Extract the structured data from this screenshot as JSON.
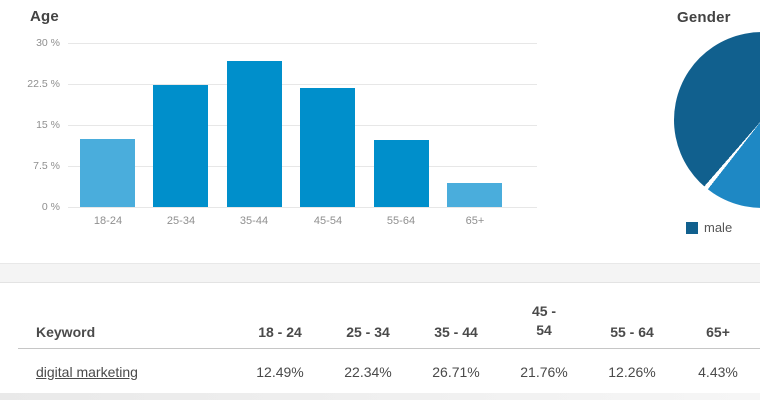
{
  "chart_data": [
    {
      "type": "bar",
      "title": "Age",
      "categories": [
        "18-24",
        "25-34",
        "35-44",
        "45-54",
        "55-64",
        "65+"
      ],
      "values": [
        12.49,
        22.34,
        26.71,
        21.76,
        12.26,
        4.43
      ],
      "value_unit": "%",
      "y_ticks": [
        "30 %",
        "22.5 %",
        "15 %",
        "7.5 %",
        "0 %"
      ],
      "y_tick_values": [
        30,
        22.5,
        15,
        7.5,
        0
      ],
      "ylim": [
        0,
        30
      ],
      "grid": true,
      "legend": null,
      "bar_colors": [
        "#4aaddc",
        "#008fcb",
        "#008fcb",
        "#008fcb",
        "#008fcb",
        "#4aaddc"
      ]
    },
    {
      "type": "pie",
      "title": "Gender",
      "legend_position": "bottom",
      "legend": [
        {
          "label": "male",
          "color": "#11608e"
        }
      ],
      "slices": [
        {
          "name": "male",
          "color": "#11608e",
          "visible_arc_deg": 139
        },
        {
          "name": "unlabeled-light-slice",
          "color": "#1e88c4",
          "visible_arc_deg": 38
        }
      ]
    }
  ],
  "table": {
    "columns": [
      "Keyword",
      "18 - 24",
      "25 - 34",
      "35 - 44",
      "45 - 54",
      "55 - 64",
      "65+"
    ],
    "rows": [
      {
        "keyword": "digital marketing",
        "values": [
          "12.49%",
          "22.34%",
          "26.71%",
          "21.76%",
          "12.26%",
          "4.43%"
        ]
      }
    ]
  },
  "colors": {
    "bar_light": "#4aaddc",
    "bar_dark": "#008fcb",
    "pie_dark": "#11608e",
    "pie_light": "#1e88c4",
    "grid_line": "#e7e7e7",
    "axis_text": "#8f8f8f",
    "title_text": "#434343",
    "table_text": "#4a4a4a",
    "separator_band": "#f4f4f4"
  }
}
